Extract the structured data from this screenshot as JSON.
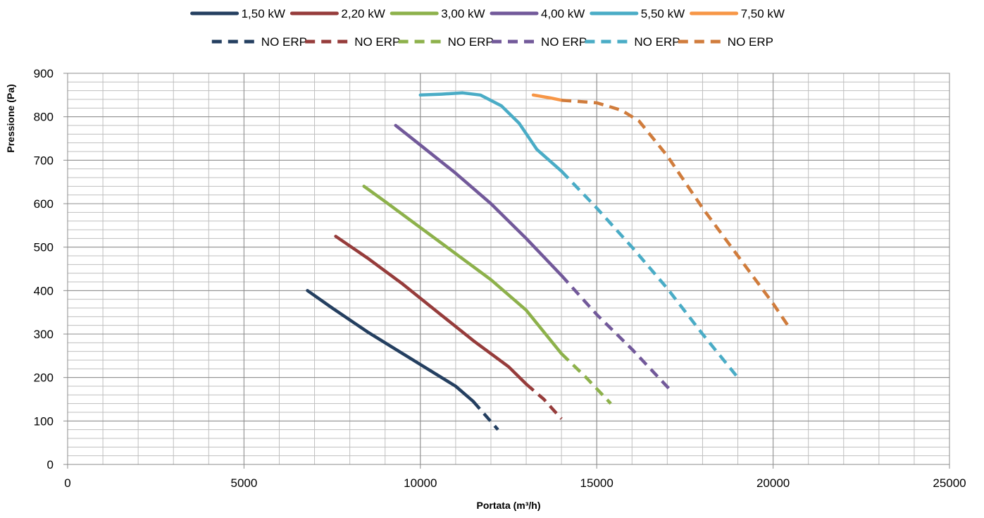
{
  "chart_data": {
    "type": "line",
    "title": "",
    "xlabel": "Portata (m³/h)",
    "ylabel": "Pressione (Pa)",
    "xlim": [
      0,
      25000
    ],
    "ylim": [
      0,
      900
    ],
    "xticks": [
      0,
      5000,
      10000,
      15000,
      20000,
      25000
    ],
    "yticks": [
      0,
      100,
      200,
      300,
      400,
      500,
      600,
      700,
      800,
      900
    ],
    "grid": true,
    "legend_position": "top",
    "series": [
      {
        "name": "1,50 kW",
        "color": "#243f60",
        "style": "solid",
        "points": [
          [
            6800,
            400
          ],
          [
            7500,
            360
          ],
          [
            8500,
            305
          ],
          [
            9500,
            255
          ],
          [
            10500,
            205
          ],
          [
            11000,
            180
          ],
          [
            11500,
            145
          ]
        ]
      },
      {
        "name": "NO ERP",
        "color": "#243f60",
        "style": "dashed",
        "points": [
          [
            11500,
            145
          ],
          [
            12200,
            80
          ]
        ]
      },
      {
        "name": "2,20 kW",
        "color": "#963c3b",
        "style": "solid",
        "points": [
          [
            7600,
            525
          ],
          [
            8500,
            475
          ],
          [
            9500,
            415
          ],
          [
            10500,
            350
          ],
          [
            11500,
            285
          ],
          [
            12500,
            225
          ],
          [
            13000,
            185
          ]
        ]
      },
      {
        "name": "NO ERP",
        "color": "#963c3b",
        "style": "dashed",
        "points": [
          [
            13000,
            185
          ],
          [
            13500,
            150
          ],
          [
            14000,
            105
          ]
        ]
      },
      {
        "name": "3,00 kW",
        "color": "#8db14b",
        "style": "solid",
        "points": [
          [
            8400,
            640
          ],
          [
            9000,
            605
          ],
          [
            10000,
            545
          ],
          [
            11000,
            485
          ],
          [
            12000,
            425
          ],
          [
            13000,
            355
          ],
          [
            14000,
            255
          ]
        ]
      },
      {
        "name": "NO ERP",
        "color": "#8db14b",
        "style": "dashed",
        "points": [
          [
            14000,
            255
          ],
          [
            14700,
            200
          ],
          [
            15400,
            140
          ]
        ]
      },
      {
        "name": "4,00 kW",
        "color": "#72599a",
        "style": "solid",
        "points": [
          [
            9300,
            780
          ],
          [
            10000,
            735
          ],
          [
            11000,
            670
          ],
          [
            12000,
            600
          ],
          [
            13000,
            520
          ],
          [
            14000,
            435
          ]
        ]
      },
      {
        "name": "NO ERP",
        "color": "#72599a",
        "style": "dashed",
        "points": [
          [
            14000,
            435
          ],
          [
            15000,
            345
          ],
          [
            16000,
            265
          ],
          [
            17100,
            170
          ]
        ]
      },
      {
        "name": "5,50 kW",
        "color": "#4aacc6",
        "style": "solid",
        "points": [
          [
            10000,
            850
          ],
          [
            10600,
            852
          ],
          [
            11200,
            855
          ],
          [
            11700,
            850
          ],
          [
            12300,
            825
          ],
          [
            12800,
            785
          ],
          [
            13300,
            725
          ],
          [
            14000,
            675
          ]
        ]
      },
      {
        "name": "NO ERP",
        "color": "#4aacc6",
        "style": "dashed",
        "points": [
          [
            14000,
            675
          ],
          [
            15000,
            590
          ],
          [
            16000,
            500
          ],
          [
            17000,
            405
          ],
          [
            18000,
            300
          ],
          [
            19000,
            200
          ]
        ]
      },
      {
        "name": "7,50 kW",
        "color": "#f79646",
        "style": "solid",
        "points": [
          [
            13200,
            850
          ],
          [
            13700,
            843
          ],
          [
            14000,
            838
          ]
        ]
      },
      {
        "name": "NO ERP",
        "color": "#d07c3c",
        "style": "dashed",
        "points": [
          [
            14000,
            838
          ],
          [
            15000,
            832
          ],
          [
            15700,
            815
          ],
          [
            16200,
            790
          ],
          [
            17000,
            710
          ],
          [
            18000,
            590
          ],
          [
            19000,
            480
          ],
          [
            20000,
            370
          ],
          [
            20500,
            310
          ]
        ]
      }
    ]
  }
}
